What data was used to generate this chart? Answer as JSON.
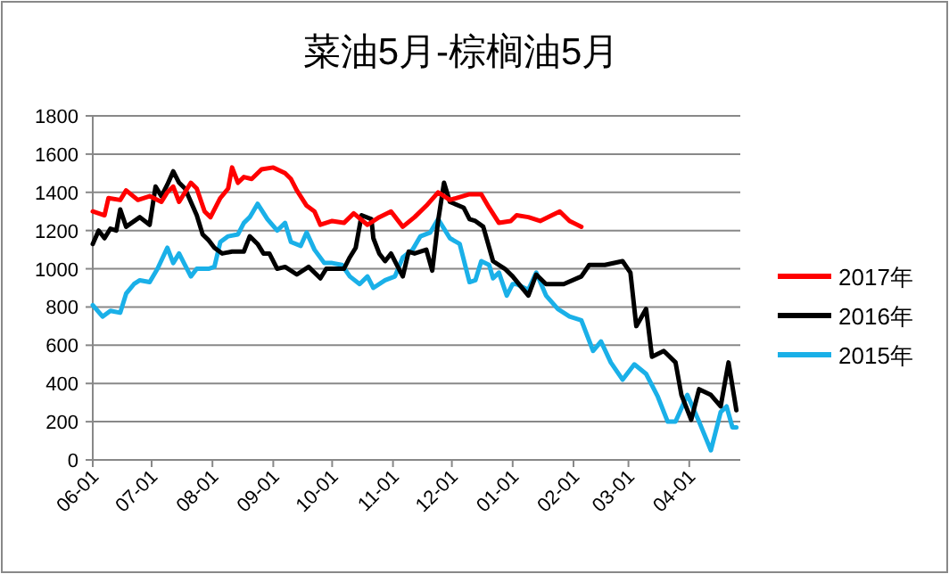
{
  "chart_data": {
    "type": "line",
    "title": "菜油5月-棕榈油5月",
    "xlim": [
      "2016-06-01",
      "2017-04-27"
    ],
    "xticks": [
      {
        "value": "2016-06-01",
        "label": "06-01"
      },
      {
        "value": "2016-07-01",
        "label": "07-01"
      },
      {
        "value": "2016-08-01",
        "label": "08-01"
      },
      {
        "value": "2016-09-01",
        "label": "09-01"
      },
      {
        "value": "2016-10-01",
        "label": "10-01"
      },
      {
        "value": "2016-11-01",
        "label": "11-01"
      },
      {
        "value": "2016-12-01",
        "label": "12-01"
      },
      {
        "value": "2017-01-01",
        "label": "01-01"
      },
      {
        "value": "2017-02-01",
        "label": "02-01"
      },
      {
        "value": "2017-03-01",
        "label": "03-01"
      },
      {
        "value": "2017-04-01",
        "label": "04-01"
      }
    ],
    "ylim": [
      0,
      1800
    ],
    "yticks": [
      0,
      200,
      400,
      600,
      800,
      1000,
      1200,
      1400,
      1600,
      1800
    ],
    "grid": "y",
    "legend": "right",
    "series": [
      {
        "name": "2017年",
        "color": "#ff0000",
        "x": [
          "2016-06-01",
          "2016-06-07",
          "2016-06-09",
          "2016-06-15",
          "2016-06-18",
          "2016-06-24",
          "2016-06-30",
          "2016-07-06",
          "2016-07-09",
          "2016-07-12",
          "2016-07-15",
          "2016-07-18",
          "2016-07-21",
          "2016-07-24",
          "2016-07-28",
          "2016-07-31",
          "2016-08-05",
          "2016-08-09",
          "2016-08-11",
          "2016-08-14",
          "2016-08-17",
          "2016-08-21",
          "2016-08-26",
          "2016-09-01",
          "2016-09-07",
          "2016-09-10",
          "2016-09-13",
          "2016-09-18",
          "2016-09-22",
          "2016-09-25",
          "2016-10-01",
          "2016-10-07",
          "2016-10-12",
          "2016-10-19",
          "2016-10-25",
          "2016-10-31",
          "2016-11-06",
          "2016-11-12",
          "2016-11-18",
          "2016-11-24",
          "2016-11-30",
          "2016-12-10",
          "2016-12-16",
          "2016-12-20",
          "2016-12-25",
          "2016-12-31",
          "2017-01-03",
          "2017-01-09",
          "2017-01-15",
          "2017-01-21",
          "2017-01-25",
          "2017-01-30",
          "2017-02-05"
        ],
        "values": [
          1300,
          1280,
          1370,
          1360,
          1410,
          1360,
          1380,
          1350,
          1400,
          1430,
          1350,
          1400,
          1450,
          1420,
          1300,
          1270,
          1370,
          1420,
          1530,
          1450,
          1480,
          1470,
          1520,
          1530,
          1500,
          1470,
          1410,
          1330,
          1300,
          1230,
          1250,
          1240,
          1290,
          1230,
          1270,
          1300,
          1220,
          1270,
          1330,
          1400,
          1360,
          1390,
          1390,
          1320,
          1240,
          1250,
          1280,
          1270,
          1250,
          1280,
          1300,
          1250,
          1220
        ]
      },
      {
        "name": "2016年",
        "color": "#000000",
        "x": [
          "2016-06-01",
          "2016-06-04",
          "2016-06-07",
          "2016-06-10",
          "2016-06-13",
          "2016-06-15",
          "2016-06-18",
          "2016-06-25",
          "2016-06-30",
          "2016-07-03",
          "2016-07-06",
          "2016-07-09",
          "2016-07-12",
          "2016-07-15",
          "2016-07-18",
          "2016-07-21",
          "2016-07-24",
          "2016-07-27",
          "2016-07-30",
          "2016-08-02",
          "2016-08-06",
          "2016-08-11",
          "2016-08-17",
          "2016-08-20",
          "2016-08-24",
          "2016-08-27",
          "2016-08-30",
          "2016-09-03",
          "2016-09-07",
          "2016-09-13",
          "2016-09-19",
          "2016-09-25",
          "2016-09-28",
          "2016-10-07",
          "2016-10-10",
          "2016-10-13",
          "2016-10-16",
          "2016-10-21",
          "2016-10-22",
          "2016-10-25",
          "2016-10-28",
          "2016-10-31",
          "2016-11-03",
          "2016-11-06",
          "2016-11-09",
          "2016-11-12",
          "2016-11-18",
          "2016-11-21",
          "2016-11-24",
          "2016-11-27",
          "2016-11-30",
          "2016-12-07",
          "2016-12-10",
          "2016-12-13",
          "2016-12-17",
          "2016-12-22",
          "2016-12-28",
          "2017-01-01",
          "2017-01-09",
          "2017-01-13",
          "2017-01-18",
          "2017-01-27",
          "2017-02-05",
          "2017-02-09",
          "2017-02-17",
          "2017-02-26",
          "2017-03-02",
          "2017-03-05",
          "2017-03-10",
          "2017-03-13",
          "2017-03-19",
          "2017-03-25",
          "2017-03-28",
          "2017-04-02",
          "2017-04-06",
          "2017-04-12",
          "2017-04-17",
          "2017-04-21",
          "2017-04-25"
        ],
        "values": [
          1130,
          1200,
          1160,
          1210,
          1200,
          1310,
          1220,
          1270,
          1230,
          1430,
          1380,
          1440,
          1510,
          1450,
          1420,
          1350,
          1280,
          1180,
          1150,
          1110,
          1080,
          1090,
          1090,
          1170,
          1130,
          1080,
          1080,
          1000,
          1010,
          970,
          1010,
          950,
          1000,
          1000,
          1060,
          1110,
          1280,
          1260,
          1160,
          1080,
          1040,
          1080,
          1020,
          960,
          1090,
          1080,
          1100,
          990,
          1250,
          1450,
          1350,
          1320,
          1260,
          1250,
          1220,
          1040,
          1000,
          960,
          860,
          970,
          920,
          920,
          960,
          1020,
          1020,
          1040,
          980,
          700,
          790,
          540,
          570,
          510,
          340,
          210,
          370,
          340,
          280,
          510,
          260
        ]
      },
      {
        "name": "2015年",
        "color": "#1ab0e8",
        "x": [
          "2016-06-01",
          "2016-06-06",
          "2016-06-10",
          "2016-06-15",
          "2016-06-18",
          "2016-06-22",
          "2016-06-25",
          "2016-06-30",
          "2016-07-04",
          "2016-07-09",
          "2016-07-12",
          "2016-07-15",
          "2016-07-18",
          "2016-07-21",
          "2016-07-24",
          "2016-07-30",
          "2016-08-02",
          "2016-08-05",
          "2016-08-09",
          "2016-08-14",
          "2016-08-17",
          "2016-08-20",
          "2016-08-24",
          "2016-08-29",
          "2016-09-03",
          "2016-09-07",
          "2016-09-10",
          "2016-09-15",
          "2016-09-18",
          "2016-09-22",
          "2016-09-27",
          "2016-10-01",
          "2016-10-06",
          "2016-10-10",
          "2016-10-15",
          "2016-10-19",
          "2016-10-22",
          "2016-10-28",
          "2016-11-02",
          "2016-11-06",
          "2016-11-11",
          "2016-11-15",
          "2016-11-20",
          "2016-11-24",
          "2016-11-30",
          "2016-12-05",
          "2016-12-10",
          "2016-12-13",
          "2016-12-16",
          "2016-12-20",
          "2016-12-22",
          "2016-12-25",
          "2016-12-29",
          "2017-01-01",
          "2017-01-03",
          "2017-01-09",
          "2017-01-13",
          "2017-01-18",
          "2017-01-24",
          "2017-01-30",
          "2017-02-05",
          "2017-02-11",
          "2017-02-15",
          "2017-02-20",
          "2017-02-26",
          "2017-03-04",
          "2017-03-10",
          "2017-03-16",
          "2017-03-21",
          "2017-03-25",
          "2017-03-31",
          "2017-04-06",
          "2017-04-12",
          "2017-04-17",
          "2017-04-20",
          "2017-04-23",
          "2017-04-25"
        ],
        "values": [
          810,
          750,
          780,
          770,
          870,
          920,
          940,
          930,
          1000,
          1110,
          1030,
          1080,
          1020,
          960,
          1000,
          1000,
          1010,
          1140,
          1170,
          1180,
          1240,
          1270,
          1340,
          1260,
          1200,
          1240,
          1140,
          1120,
          1190,
          1100,
          1030,
          1030,
          1020,
          960,
          920,
          960,
          900,
          940,
          960,
          1060,
          1100,
          1170,
          1190,
          1260,
          1160,
          1130,
          930,
          940,
          1040,
          1020,
          950,
          980,
          860,
          920,
          920,
          890,
          980,
          860,
          790,
          750,
          730,
          570,
          620,
          510,
          420,
          500,
          450,
          330,
          200,
          200,
          340,
          200,
          50,
          250,
          280,
          170,
          170
        ]
      }
    ]
  }
}
